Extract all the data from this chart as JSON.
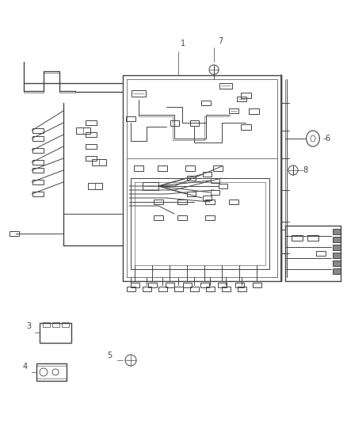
{
  "bg_color": "#ffffff",
  "line_color": "#444444",
  "figsize": [
    4.38,
    5.33
  ],
  "dpi": 100
}
